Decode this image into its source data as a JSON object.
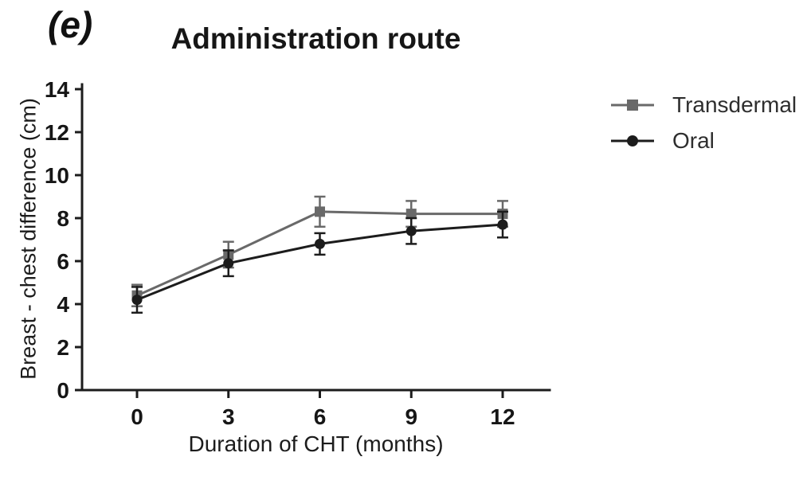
{
  "figure": {
    "panel_label": "(e)"
  },
  "chart_data": {
    "type": "line",
    "title": "Administration route",
    "xlabel": "Duration of CHT (months)",
    "ylabel": "Breast - chest difference (cm)",
    "x": [
      0,
      3,
      6,
      9,
      12
    ],
    "xticks": [
      0,
      3,
      6,
      9,
      12
    ],
    "yticks": [
      0,
      2,
      4,
      6,
      8,
      10,
      12,
      14
    ],
    "xlim": [
      -1.8,
      13.5
    ],
    "ylim": [
      0,
      14
    ],
    "grid": false,
    "error_bars": true,
    "legend_position": "right-outside",
    "axis_color": "#1c1c1c",
    "series": [
      {
        "name": "Transdermal",
        "marker": "square",
        "color": "#696969",
        "values": [
          4.4,
          6.3,
          8.3,
          8.2,
          8.2
        ],
        "errors": [
          0.5,
          0.6,
          0.7,
          0.6,
          0.6
        ]
      },
      {
        "name": "Oral",
        "marker": "circle",
        "color": "#1c1c1c",
        "values": [
          4.2,
          5.9,
          6.8,
          7.4,
          7.7
        ],
        "errors": [
          0.6,
          0.6,
          0.5,
          0.6,
          0.6
        ]
      }
    ]
  }
}
